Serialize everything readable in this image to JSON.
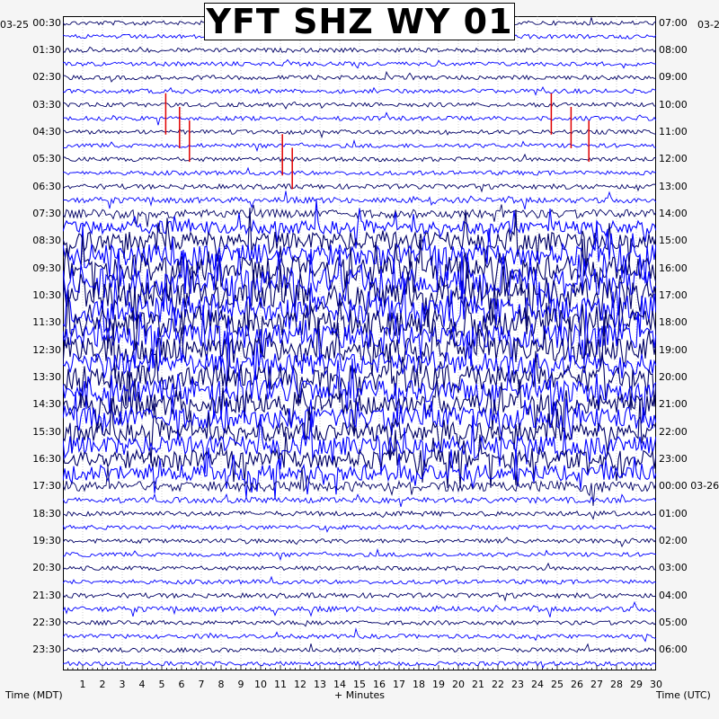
{
  "title": "YFT SHZ WY 01",
  "left_date": "03-25",
  "right_date": "03-2",
  "left_axis_title": "Time (MDT)",
  "right_axis_title": "Time (UTC)",
  "x_axis_title": "+ Minutes",
  "colors": {
    "background": "#f5f5f5",
    "plot_bg": "#ffffff",
    "trace_blue": "#0000ff",
    "trace_navy": "#000066",
    "trace_dark": "#00007a",
    "clip": "#e00000",
    "grid": "#999999"
  },
  "chart_data": {
    "type": "line",
    "title": "YFT SHZ WY 01",
    "xlabel": "+ Minutes",
    "ylabel_left": "Time (MDT)",
    "ylabel_right": "Time (UTC)",
    "xlim": [
      0,
      30
    ],
    "x_ticks": [
      "1",
      "2",
      "3",
      "4",
      "5",
      "6",
      "7",
      "8",
      "9",
      "10",
      "11",
      "12",
      "13",
      "14",
      "15",
      "16",
      "17",
      "18",
      "19",
      "20",
      "21",
      "22",
      "23",
      "24",
      "25",
      "26",
      "27",
      "28",
      "29",
      "30"
    ],
    "left_labels": [
      "00:30",
      "01:30",
      "02:30",
      "03:30",
      "04:30",
      "05:30",
      "06:30",
      "07:30",
      "08:30",
      "09:30",
      "10:30",
      "11:30",
      "12:30",
      "13:30",
      "14:30",
      "15:30",
      "16:30",
      "17:30",
      "18:30",
      "19:30",
      "20:30",
      "21:30",
      "22:30",
      "23:30"
    ],
    "right_labels": [
      "07:00",
      "08:00",
      "09:00",
      "10:00",
      "11:00",
      "12:00",
      "13:00",
      "14:00",
      "15:00",
      "16:00",
      "17:00",
      "18:00",
      "19:00",
      "20:00",
      "21:00",
      "22:00",
      "23:00",
      "00:00 03-26",
      "01:00",
      "02:00",
      "03:00",
      "04:00",
      "05:00",
      "06:00"
    ],
    "traces_per_hour": 2,
    "trace_minutes": 30,
    "colors_cycle": [
      "#000066",
      "#0000ff"
    ],
    "activity_by_row": [
      1,
      1,
      1,
      1,
      1,
      1,
      1,
      1,
      1,
      1,
      1,
      1,
      1.2,
      1.5,
      2.5,
      4,
      6,
      7,
      8,
      9,
      9,
      9,
      9,
      8,
      8,
      7,
      8,
      7,
      7,
      7,
      6,
      6,
      6,
      5,
      3,
      1.5,
      1.2,
      1,
      1,
      1,
      1,
      1,
      1.2,
      1.3,
      1,
      1,
      1,
      1
    ]
  }
}
